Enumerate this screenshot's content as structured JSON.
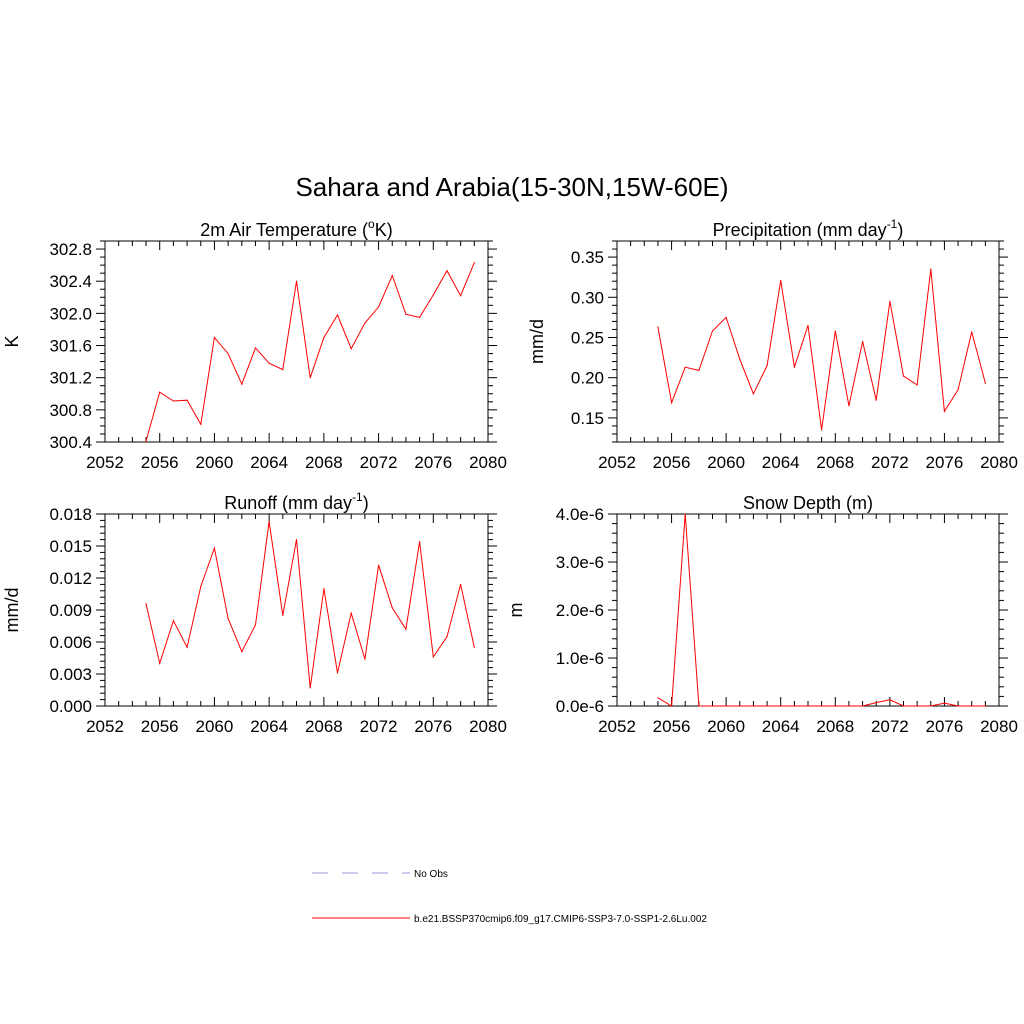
{
  "title": "Sahara and Arabia(15-30N,15W-60E)",
  "colors": {
    "series": "#ff0000",
    "no_obs": "#9999dd",
    "axis": "#000000"
  },
  "legend": [
    {
      "label": "No Obs",
      "style": "dashed",
      "color": "#9999dd"
    },
    {
      "label": "b.e21.BSSP370cmip6.f09_g17.CMIP6-SSP3-7.0-SSP1-2.6Lu.002",
      "style": "solid",
      "color": "#ff0000"
    }
  ],
  "chart_data": [
    {
      "type": "line",
      "title": {
        "main": "2m Air Temperature (",
        "sup": "o",
        "rest": "K)"
      },
      "ylabel": "K",
      "xlim": [
        2052,
        2080
      ],
      "xticks": [
        2052,
        2056,
        2060,
        2064,
        2068,
        2072,
        2076,
        2080
      ],
      "xtick_labels": [
        "2052",
        "2056",
        "2060",
        "2064",
        "2068",
        "2072",
        "2076",
        "2080"
      ],
      "ylim": [
        300.4,
        302.9
      ],
      "yticks": [
        300.4,
        300.8,
        301.2,
        301.6,
        302.0,
        302.4,
        302.8
      ],
      "ytick_labels": [
        "300.4",
        "300.8",
        "301.2",
        "301.6",
        "302.0",
        "302.4",
        "302.8"
      ],
      "yminor": 0.1,
      "x": [
        2055,
        2056,
        2057,
        2058,
        2059,
        2060,
        2061,
        2062,
        2063,
        2064,
        2065,
        2066,
        2067,
        2068,
        2069,
        2070,
        2071,
        2072,
        2073,
        2074,
        2075,
        2076,
        2077,
        2078,
        2079
      ],
      "values": [
        300.41,
        301.02,
        300.91,
        300.92,
        300.62,
        301.7,
        301.5,
        301.12,
        301.57,
        301.38,
        301.3,
        302.4,
        301.2,
        301.7,
        301.98,
        301.56,
        301.88,
        302.08,
        302.47,
        301.99,
        301.95,
        302.23,
        302.53,
        302.22,
        302.63
      ]
    },
    {
      "type": "line",
      "title": {
        "main": "Precipitation (mm day",
        "sup": "-1",
        "rest": ")"
      },
      "ylabel": "mm/d",
      "xlim": [
        2052,
        2080
      ],
      "xticks": [
        2052,
        2056,
        2060,
        2064,
        2068,
        2072,
        2076,
        2080
      ],
      "xtick_labels": [
        "2052",
        "2056",
        "2060",
        "2064",
        "2068",
        "2072",
        "2076",
        "2080"
      ],
      "ylim": [
        0.12,
        0.37
      ],
      "yticks": [
        0.15,
        0.2,
        0.25,
        0.3,
        0.35
      ],
      "ytick_labels": [
        "0.15",
        "0.20",
        "0.25",
        "0.30",
        "0.35"
      ],
      "yminor": 0.01,
      "x": [
        2055,
        2056,
        2057,
        2058,
        2059,
        2060,
        2061,
        2062,
        2063,
        2064,
        2065,
        2066,
        2067,
        2068,
        2069,
        2070,
        2071,
        2072,
        2073,
        2074,
        2075,
        2076,
        2077,
        2078,
        2079
      ],
      "values": [
        0.263,
        0.169,
        0.213,
        0.209,
        0.258,
        0.275,
        0.223,
        0.18,
        0.215,
        0.321,
        0.213,
        0.265,
        0.135,
        0.258,
        0.165,
        0.245,
        0.172,
        0.295,
        0.202,
        0.191,
        0.335,
        0.158,
        0.185,
        0.257,
        0.193
      ]
    },
    {
      "type": "line",
      "title": {
        "main": "Runoff (mm day",
        "sup": "-1",
        "rest": ")"
      },
      "ylabel": "mm/d",
      "xlim": [
        2052,
        2080
      ],
      "xticks": [
        2052,
        2056,
        2060,
        2064,
        2068,
        2072,
        2076,
        2080
      ],
      "xtick_labels": [
        "2052",
        "2056",
        "2060",
        "2064",
        "2068",
        "2072",
        "2076",
        "2080"
      ],
      "ylim": [
        0.0,
        0.018
      ],
      "yticks": [
        0.0,
        0.003,
        0.006,
        0.009,
        0.012,
        0.015,
        0.018
      ],
      "ytick_labels": [
        "0.000",
        "0.003",
        "0.006",
        "0.009",
        "0.012",
        "0.015",
        "0.018"
      ],
      "yminor": 0.0006,
      "x": [
        2055,
        2056,
        2057,
        2058,
        2059,
        2060,
        2061,
        2062,
        2063,
        2064,
        2065,
        2066,
        2067,
        2068,
        2069,
        2070,
        2071,
        2072,
        2073,
        2074,
        2075,
        2076,
        2077,
        2078,
        2079
      ],
      "values": [
        0.0096,
        0.004,
        0.008,
        0.0055,
        0.0112,
        0.0148,
        0.0082,
        0.0051,
        0.0076,
        0.0173,
        0.0085,
        0.0156,
        0.0017,
        0.011,
        0.0031,
        0.0087,
        0.0044,
        0.0132,
        0.0092,
        0.0072,
        0.0154,
        0.0046,
        0.0065,
        0.0114,
        0.0055
      ]
    },
    {
      "type": "line",
      "title": {
        "main": "Snow Depth (m)",
        "sup": "",
        "rest": ""
      },
      "ylabel": "m",
      "xlim": [
        2052,
        2080
      ],
      "xticks": [
        2052,
        2056,
        2060,
        2064,
        2068,
        2072,
        2076,
        2080
      ],
      "xtick_labels": [
        "2052",
        "2056",
        "2060",
        "2064",
        "2068",
        "2072",
        "2076",
        "2080"
      ],
      "ylim": [
        0.0,
        4e-06
      ],
      "yticks": [
        0.0,
        1e-06,
        2e-06,
        3e-06,
        4e-06
      ],
      "ytick_labels": [
        "0.0e-6",
        "1.0e-6",
        "2.0e-6",
        "3.0e-6",
        "4.0e-6"
      ],
      "yminor": 2e-07,
      "x": [
        2055,
        2056,
        2057,
        2058,
        2059,
        2060,
        2061,
        2062,
        2063,
        2064,
        2065,
        2066,
        2067,
        2068,
        2069,
        2070,
        2071,
        2072,
        2073,
        2074,
        2075,
        2076,
        2077,
        2078,
        2079
      ],
      "values": [
        1.7e-07,
        0.0,
        4e-06,
        0.0,
        0.0,
        0.0,
        0.0,
        0.0,
        0.0,
        0.0,
        0.0,
        0.0,
        0.0,
        0.0,
        0.0,
        0.0,
        7e-08,
        1.3e-07,
        0.0,
        0.0,
        0.0,
        6e-08,
        0.0,
        0.0,
        0.0
      ]
    }
  ]
}
